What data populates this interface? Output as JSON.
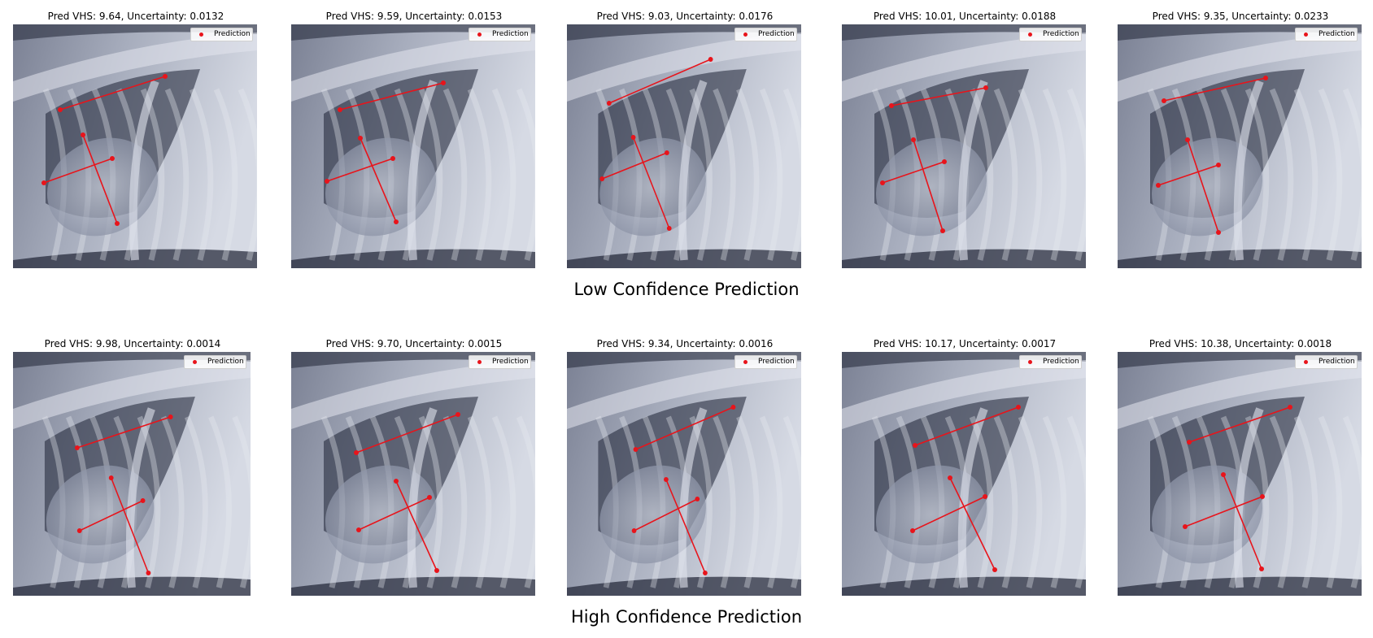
{
  "rows": [
    {
      "caption": "Low Confidence Prediction",
      "panels": [
        {
          "title": "Pred VHS: 9.64, Uncertainty: 0.0132",
          "legend_label": "Prediction"
        },
        {
          "title": "Pred VHS: 9.59, Uncertainty: 0.0153",
          "legend_label": "Prediction"
        },
        {
          "title": "Pred VHS: 9.03, Uncertainty: 0.0176",
          "legend_label": "Prediction"
        },
        {
          "title": "Pred VHS: 10.01, Uncertainty: 0.0188",
          "legend_label": "Prediction"
        },
        {
          "title": "Pred VHS: 9.35, Uncertainty: 0.0233",
          "legend_label": "Prediction"
        }
      ]
    },
    {
      "caption": "High Confidence Prediction",
      "panels": [
        {
          "title": "Pred VHS: 9.98, Uncertainty: 0.0014",
          "legend_label": "Prediction"
        },
        {
          "title": "Pred VHS: 9.70, Uncertainty: 0.0015",
          "legend_label": "Prediction"
        },
        {
          "title": "Pred VHS: 9.34, Uncertainty: 0.0016",
          "legend_label": "Prediction"
        },
        {
          "title": "Pred VHS: 10.17, Uncertainty: 0.0017",
          "legend_label": "Prediction"
        },
        {
          "title": "Pred VHS: 10.38, Uncertainty: 0.0018",
          "legend_label": "Prediction"
        }
      ]
    }
  ],
  "colors": {
    "prediction": "#e8141b",
    "xray_dark": "#0c1020",
    "xray_light": "#d8dde8"
  }
}
